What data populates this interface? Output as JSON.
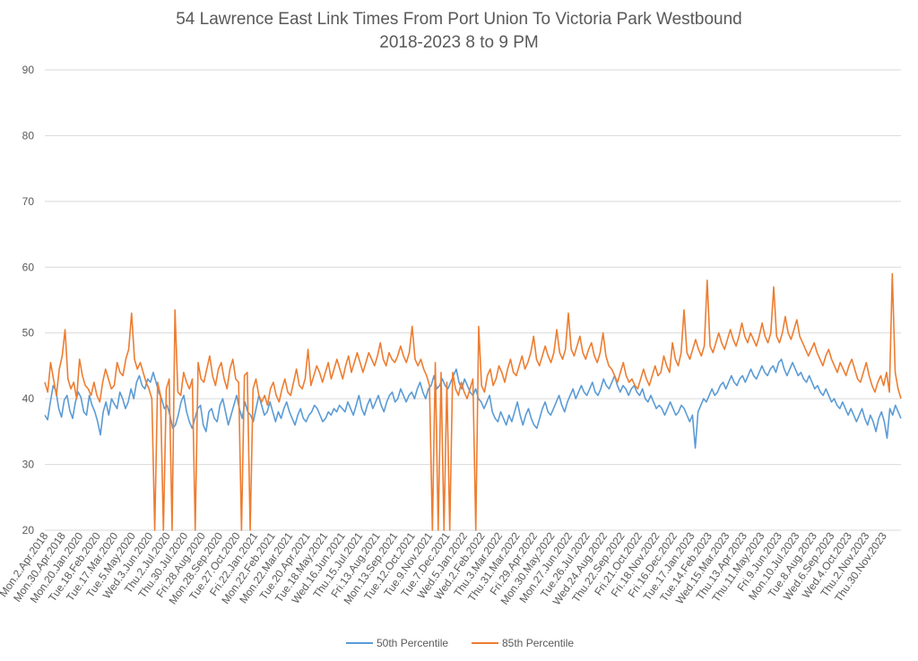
{
  "chart_data": {
    "type": "line",
    "title": "54 Lawrence East Link Times From Port Union To Victoria Park Westbound",
    "subtitle": "2018-2023 8 to 9 PM",
    "xlabel": "",
    "ylabel": "",
    "ylim": [
      20,
      90
    ],
    "yticks": [
      20,
      30,
      40,
      50,
      60,
      70,
      80,
      90
    ],
    "grid": true,
    "legend_position": "bottom",
    "x_tick_labels": [
      "Mon.2.Apr.2018",
      "Mon.30.Apr.2018",
      "Mon.20.Jan.2020",
      "Tue.18.Feb.2020",
      "Tue.17.Mar.2020",
      "Tue.5.May.2020",
      "Wed.3.Jun.2020",
      "Thu.2.Jul.2020",
      "Thu.30.Jul.2020",
      "Fri.28.Aug.2020",
      "Mon.28.Sep.2020",
      "Tue.27.Oct.2020",
      "Fri.22.Jan.2021",
      "Mon.22.Feb.2021",
      "Mon.22.Mar.2021",
      "Tue.20.Apr.2021",
      "Tue.18.May.2021",
      "Wed.16.Jun.2021",
      "Thu.15.Jul.2021",
      "Fri.13.Aug.2021",
      "Mon.13.Sep.2021",
      "Tue.12.Oct.2021",
      "Tue.9.Nov.2021",
      "Tue.7.Dec.2021",
      "Wed.5.Jan.2022",
      "Wed.2.Feb.2022",
      "Thu.3.Mar.2022",
      "Thu.31.Mar.2022",
      "Fri.29.Apr.2022",
      "Mon.30.May.2022",
      "Mon.27.Jun.2022",
      "Tue.26.Jul.2022",
      "Wed.24.Aug.2022",
      "Thu.22.Sep.2022",
      "Fri.21.Oct.2022",
      "Fri.18.Nov.2022",
      "Fri.16.Dec.2022",
      "Tue.17.Jan.2023",
      "Tue.14.Feb.2023",
      "Wed.15.Mar.2023",
      "Thu.13.Apr.2023",
      "Thu.11.May.2023",
      "Fri.9.Jun.2023",
      "Mon.10.Jul.2023",
      "Tue.8.Aug.2023",
      "Wed.6.Sep.2023",
      "Wed.4.Oct.2023",
      "Thu.2.Nov.2023",
      "Thu.30.Nov.2023"
    ],
    "series": [
      {
        "name": "50th Percentile",
        "color": "#5B9BD5",
        "values": [
          37.5,
          36.8,
          39.5,
          42.0,
          41.2,
          38.5,
          37.2,
          39.8,
          40.5,
          38.2,
          37.0,
          39.5,
          41.0,
          40.2,
          38.0,
          37.5,
          40.5,
          39.0,
          38.0,
          36.5,
          34.5,
          38.0,
          39.5,
          37.5,
          40.0,
          39.2,
          38.5,
          41.0,
          40.0,
          38.5,
          39.5,
          41.5,
          40.0,
          42.5,
          43.5,
          42.0,
          41.5,
          43.0,
          42.5,
          44.0,
          42.5,
          41.0,
          40.0,
          38.5,
          39.0,
          37.5,
          35.5,
          36.0,
          37.5,
          39.5,
          40.5,
          38.0,
          36.5,
          35.5,
          37.0,
          38.5,
          39.0,
          36.0,
          35.0,
          38.0,
          38.5,
          37.0,
          36.5,
          39.0,
          40.0,
          38.0,
          36.0,
          37.5,
          39.0,
          40.5,
          38.5,
          37.0,
          39.5,
          38.0,
          37.5,
          36.5,
          38.5,
          40.5,
          39.0,
          37.5,
          38.0,
          39.5,
          38.0,
          36.5,
          38.0,
          37.0,
          38.5,
          39.5,
          38.0,
          37.0,
          36.0,
          37.5,
          38.5,
          37.0,
          36.5,
          37.5,
          38.0,
          39.0,
          38.5,
          37.5,
          36.5,
          37.0,
          38.0,
          37.5,
          38.5,
          38.0,
          39.0,
          38.5,
          38.0,
          39.5,
          38.5,
          37.5,
          39.0,
          40.5,
          38.5,
          37.5,
          39.0,
          40.0,
          38.5,
          39.5,
          40.5,
          39.0,
          38.0,
          39.5,
          40.5,
          41.0,
          39.5,
          40.0,
          41.5,
          40.5,
          39.5,
          40.5,
          41.0,
          40.0,
          41.5,
          42.5,
          41.0,
          40.0,
          41.5,
          42.0,
          43.5,
          41.5,
          42.0,
          43.0,
          42.0,
          41.5,
          42.5,
          43.5,
          44.5,
          42.5,
          41.5,
          43.0,
          42.0,
          41.0,
          40.5,
          41.5,
          40.0,
          39.5,
          38.5,
          39.5,
          40.5,
          38.0,
          37.0,
          36.5,
          38.0,
          37.0,
          36.0,
          37.5,
          36.5,
          38.0,
          39.5,
          37.5,
          36.0,
          37.5,
          38.5,
          37.0,
          36.0,
          35.5,
          37.0,
          38.5,
          39.5,
          38.0,
          37.5,
          38.5,
          39.5,
          40.5,
          39.0,
          38.0,
          39.5,
          40.5,
          41.5,
          40.0,
          41.0,
          42.0,
          41.0,
          40.5,
          41.5,
          42.5,
          41.0,
          40.5,
          41.5,
          43.0,
          42.0,
          41.5,
          42.5,
          43.5,
          42.0,
          41.0,
          42.0,
          41.5,
          40.5,
          41.5,
          42.0,
          41.0,
          40.5,
          41.5,
          40.0,
          39.5,
          40.5,
          39.5,
          38.5,
          39.0,
          38.5,
          37.5,
          38.5,
          39.5,
          38.5,
          37.5,
          38.0,
          39.0,
          38.5,
          37.5,
          36.5,
          37.5,
          32.5,
          38.0,
          39.0,
          40.0,
          39.5,
          40.5,
          41.5,
          40.5,
          41.0,
          42.0,
          42.5,
          41.5,
          42.5,
          43.5,
          42.5,
          42.0,
          43.0,
          43.5,
          42.5,
          43.5,
          44.5,
          43.5,
          43.0,
          44.0,
          45.0,
          44.0,
          43.5,
          44.5,
          45.0,
          44.0,
          45.5,
          46.0,
          44.5,
          43.5,
          44.5,
          45.5,
          44.5,
          43.5,
          44.0,
          43.0,
          42.5,
          43.5,
          42.5,
          41.5,
          42.0,
          41.0,
          40.5,
          41.5,
          40.5,
          39.5,
          40.0,
          39.0,
          38.5,
          39.5,
          38.5,
          37.5,
          38.5,
          37.5,
          36.5,
          37.5,
          38.5,
          37.0,
          36.0,
          37.5,
          36.5,
          35.0,
          37.0,
          38.0,
          36.5,
          34.0,
          38.5,
          37.5,
          39.0,
          38.0,
          37.0
        ],
        "note": "approximate weekly-resolution reading"
      },
      {
        "name": "85th Percentile",
        "color": "#ED7D31",
        "values": [
          42.5,
          41.0,
          45.5,
          43.0,
          40.5,
          44.5,
          46.5,
          50.5,
          43.0,
          41.5,
          42.5,
          40.0,
          46.0,
          43.5,
          42.0,
          41.5,
          40.5,
          42.5,
          40.5,
          39.5,
          42.5,
          44.5,
          43.0,
          41.5,
          42.0,
          45.5,
          44.0,
          43.5,
          46.0,
          47.5,
          53.0,
          46.0,
          44.5,
          45.5,
          44.0,
          42.5,
          41.5,
          40.0,
          20.0,
          42.5,
          40.5,
          20.0,
          41.5,
          43.0,
          20.0,
          53.5,
          41.0,
          40.5,
          44.0,
          42.5,
          41.5,
          43.0,
          20.0,
          45.5,
          43.0,
          42.5,
          44.5,
          46.5,
          43.5,
          42.0,
          44.5,
          45.5,
          43.0,
          41.5,
          44.5,
          46.0,
          43.0,
          42.5,
          20.0,
          43.5,
          44.0,
          20.0,
          41.5,
          43.0,
          40.5,
          39.5,
          40.5,
          39.0,
          41.5,
          42.5,
          40.5,
          39.5,
          41.5,
          43.0,
          41.0,
          40.5,
          42.5,
          44.5,
          42.0,
          41.5,
          43.0,
          47.5,
          42.0,
          43.5,
          45.0,
          44.0,
          42.5,
          44.0,
          45.5,
          43.0,
          44.5,
          46.0,
          44.5,
          43.0,
          45.0,
          46.5,
          44.0,
          45.5,
          47.0,
          45.5,
          44.0,
          45.5,
          47.0,
          46.0,
          45.0,
          46.5,
          48.5,
          46.0,
          45.0,
          47.0,
          46.0,
          45.5,
          46.5,
          48.0,
          46.5,
          45.5,
          47.0,
          51.0,
          46.0,
          45.0,
          46.0,
          44.5,
          43.5,
          42.0,
          20.0,
          45.5,
          20.0,
          44.0,
          20.0,
          42.5,
          20.0,
          44.0,
          41.5,
          40.5,
          42.5,
          41.0,
          40.0,
          41.5,
          43.0,
          20.0,
          51.0,
          42.0,
          41.0,
          43.5,
          44.5,
          42.0,
          43.0,
          45.0,
          44.0,
          42.5,
          44.5,
          46.0,
          44.0,
          43.5,
          45.0,
          46.5,
          44.5,
          45.5,
          47.0,
          49.5,
          46.0,
          45.0,
          46.5,
          48.0,
          46.5,
          45.5,
          47.0,
          50.5,
          47.0,
          46.0,
          47.5,
          53.0,
          47.5,
          46.5,
          48.0,
          49.5,
          47.0,
          46.0,
          47.5,
          48.5,
          46.5,
          45.5,
          47.0,
          50.0,
          46.5,
          45.0,
          44.5,
          43.5,
          42.5,
          44.0,
          45.5,
          43.5,
          42.5,
          43.0,
          42.0,
          41.5,
          43.0,
          44.5,
          43.0,
          42.0,
          43.5,
          45.0,
          43.5,
          44.0,
          46.5,
          45.0,
          44.0,
          48.5,
          46.0,
          45.0,
          47.0,
          53.5,
          47.0,
          46.0,
          47.5,
          49.0,
          47.5,
          46.5,
          48.0,
          58.0,
          48.0,
          47.0,
          48.5,
          50.0,
          48.5,
          47.5,
          49.0,
          50.5,
          49.0,
          48.0,
          49.5,
          51.5,
          49.5,
          48.5,
          50.0,
          49.0,
          48.0,
          49.5,
          51.5,
          49.5,
          48.5,
          50.0,
          57.0,
          49.5,
          48.5,
          50.0,
          52.5,
          50.0,
          49.0,
          50.5,
          52.0,
          49.5,
          48.5,
          47.5,
          46.5,
          47.5,
          48.5,
          47.0,
          46.0,
          45.0,
          46.5,
          47.5,
          46.0,
          45.0,
          44.0,
          45.5,
          44.5,
          43.5,
          45.0,
          46.0,
          44.5,
          43.0,
          42.5,
          44.0,
          45.5,
          43.5,
          42.0,
          41.0,
          42.5,
          43.5,
          42.0,
          44.0,
          41.0,
          59.0,
          44.0,
          41.5,
          40.0
        ]
      }
    ]
  }
}
